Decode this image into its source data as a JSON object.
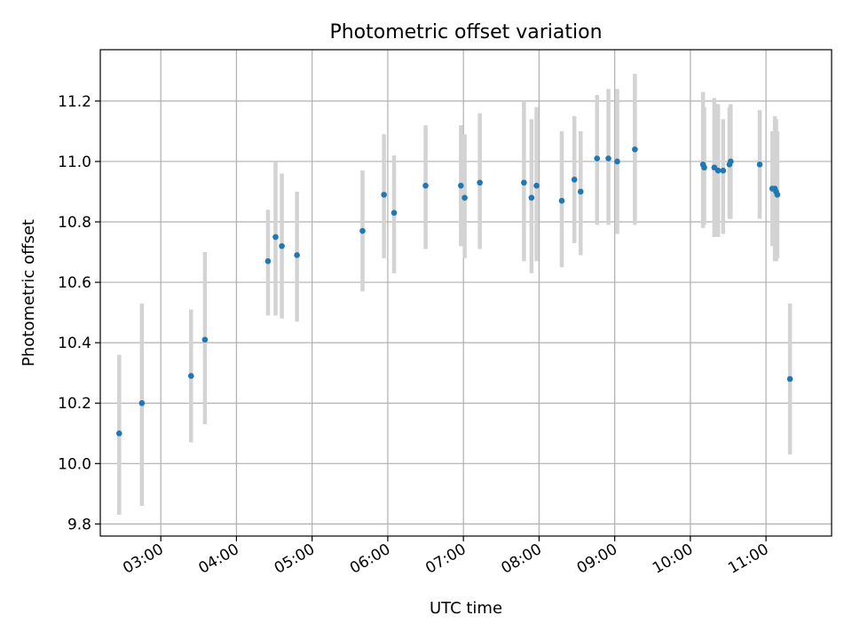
{
  "chart_data": {
    "type": "scatter",
    "title": "Photometric offset variation",
    "xlabel": "UTC time",
    "ylabel": "Photometric offset",
    "xlim": [
      "02:12",
      "11:52"
    ],
    "ylim": [
      9.76,
      11.37
    ],
    "x_ticks": [
      "03:00",
      "04:00",
      "05:00",
      "06:00",
      "07:00",
      "08:00",
      "09:00",
      "10:00",
      "11:00"
    ],
    "y_ticks": [
      "9.8",
      "10.0",
      "10.2",
      "10.4",
      "10.6",
      "10.8",
      "11.0",
      "11.2"
    ],
    "grid": true,
    "colors": {
      "point": "#1f77b4",
      "errorbar": "#d3d3d3"
    },
    "points": [
      {
        "x": "02:27",
        "y": 10.1,
        "yerr": [
          9.83,
          10.36
        ]
      },
      {
        "x": "02:45",
        "y": 10.2,
        "yerr": [
          9.86,
          10.53
        ]
      },
      {
        "x": "03:24",
        "y": 10.29,
        "yerr": [
          10.07,
          10.51
        ]
      },
      {
        "x": "03:35",
        "y": 10.41,
        "yerr": [
          10.13,
          10.7
        ]
      },
      {
        "x": "04:25",
        "y": 10.67,
        "yerr": [
          10.49,
          10.84
        ]
      },
      {
        "x": "04:31",
        "y": 10.75,
        "yerr": [
          10.49,
          11.0
        ]
      },
      {
        "x": "04:36",
        "y": 10.72,
        "yerr": [
          10.48,
          10.96
        ]
      },
      {
        "x": "04:48",
        "y": 10.69,
        "yerr": [
          10.47,
          10.9
        ]
      },
      {
        "x": "05:40",
        "y": 10.77,
        "yerr": [
          10.57,
          10.97
        ]
      },
      {
        "x": "05:57",
        "y": 10.89,
        "yerr": [
          10.68,
          11.09
        ]
      },
      {
        "x": "06:05",
        "y": 10.83,
        "yerr": [
          10.63,
          11.02
        ]
      },
      {
        "x": "06:30",
        "y": 10.92,
        "yerr": [
          10.71,
          11.12
        ]
      },
      {
        "x": "06:58",
        "y": 10.92,
        "yerr": [
          10.72,
          11.12
        ]
      },
      {
        "x": "07:01",
        "y": 10.88,
        "yerr": [
          10.68,
          11.09
        ]
      },
      {
        "x": "07:13",
        "y": 10.93,
        "yerr": [
          10.71,
          11.16
        ]
      },
      {
        "x": "07:48",
        "y": 10.93,
        "yerr": [
          10.67,
          11.2
        ]
      },
      {
        "x": "07:54",
        "y": 10.88,
        "yerr": [
          10.63,
          11.14
        ]
      },
      {
        "x": "07:58",
        "y": 10.92,
        "yerr": [
          10.67,
          11.18
        ]
      },
      {
        "x": "08:18",
        "y": 10.87,
        "yerr": [
          10.65,
          11.1
        ]
      },
      {
        "x": "08:28",
        "y": 10.94,
        "yerr": [
          10.73,
          11.15
        ]
      },
      {
        "x": "08:33",
        "y": 10.9,
        "yerr": [
          10.69,
          11.1
        ]
      },
      {
        "x": "08:46",
        "y": 11.01,
        "yerr": [
          10.79,
          11.22
        ]
      },
      {
        "x": "08:55",
        "y": 11.01,
        "yerr": [
          10.79,
          11.24
        ]
      },
      {
        "x": "09:02",
        "y": 11.0,
        "yerr": [
          10.76,
          11.24
        ]
      },
      {
        "x": "09:16",
        "y": 11.04,
        "yerr": [
          10.79,
          11.29
        ]
      },
      {
        "x": "10:10",
        "y": 10.99,
        "yerr": [
          10.78,
          11.23
        ]
      },
      {
        "x": "10:11",
        "y": 10.98,
        "yerr": [
          10.79,
          11.18
        ]
      },
      {
        "x": "10:19",
        "y": 10.98,
        "yerr": [
          10.75,
          11.21
        ]
      },
      {
        "x": "10:22",
        "y": 10.97,
        "yerr": [
          10.75,
          11.19
        ]
      },
      {
        "x": "10:26",
        "y": 10.97,
        "yerr": [
          10.76,
          11.14
        ]
      },
      {
        "x": "10:31",
        "y": 10.99,
        "yerr": [
          10.81,
          11.18
        ]
      },
      {
        "x": "10:32",
        "y": 11.0,
        "yerr": [
          10.81,
          11.19
        ]
      },
      {
        "x": "10:55",
        "y": 10.99,
        "yerr": [
          10.81,
          11.17
        ]
      },
      {
        "x": "11:05",
        "y": 10.91,
        "yerr": [
          10.72,
          11.1
        ]
      },
      {
        "x": "11:07",
        "y": 10.91,
        "yerr": [
          10.67,
          11.15
        ]
      },
      {
        "x": "11:08",
        "y": 10.9,
        "yerr": [
          10.67,
          11.14
        ]
      },
      {
        "x": "11:09",
        "y": 10.89,
        "yerr": [
          10.68,
          11.1
        ]
      },
      {
        "x": "11:19",
        "y": 10.28,
        "yerr": [
          10.03,
          10.53
        ]
      }
    ]
  }
}
